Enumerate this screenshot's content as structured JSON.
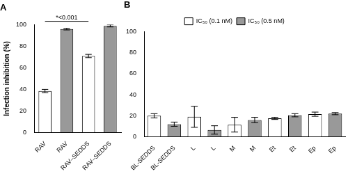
{
  "chart_data": [
    {
      "type": "bar",
      "title": "A",
      "categories": [
        "RAV",
        "RAV",
        "RAV–SEDDS",
        "RAV–SEDDS"
      ],
      "values": [
        38.5,
        96,
        71,
        99
      ],
      "errors": [
        1.5,
        0.8,
        1.5,
        1
      ],
      "colors": [
        "#ffffff",
        "#999999",
        "#ffffff",
        "#999999"
      ],
      "y_label": "Infection inhibition (%)",
      "ylim": [
        0,
        100
      ],
      "yticks": [
        0,
        20,
        40,
        60,
        80,
        100
      ],
      "grid": false,
      "annotations": [
        {
          "text": "*<0.001",
          "from": 0,
          "to": 2
        }
      ]
    },
    {
      "type": "bar",
      "title": "B",
      "categories": [
        "BL-SEDDS",
        "BL-SEDDS",
        "L",
        "L",
        "M",
        "M",
        "Et",
        "Et",
        "Ep",
        "Ep"
      ],
      "series": [
        {
          "name": "IC₅₀ (0.1 nM)",
          "color": "#ffffff",
          "values": [
            20,
            null,
            19,
            null,
            11.5,
            null,
            17.5,
            null,
            21.5,
            null
          ],
          "errors": [
            2,
            null,
            10,
            null,
            7,
            null,
            1,
            null,
            2,
            null
          ]
        },
        {
          "name": "IC₅₀ (0.5 nM)",
          "color": "#999999",
          "values": [
            null,
            12,
            null,
            6.5,
            null,
            16,
            null,
            20.5,
            null,
            22
          ],
          "errors": [
            null,
            2,
            null,
            4,
            null,
            2.5,
            null,
            1.5,
            null,
            1
          ]
        }
      ],
      "ylim": [
        0,
        100
      ],
      "yticks": [
        0,
        20,
        40,
        60,
        80,
        100
      ],
      "grid": false,
      "legend": "top"
    }
  ]
}
